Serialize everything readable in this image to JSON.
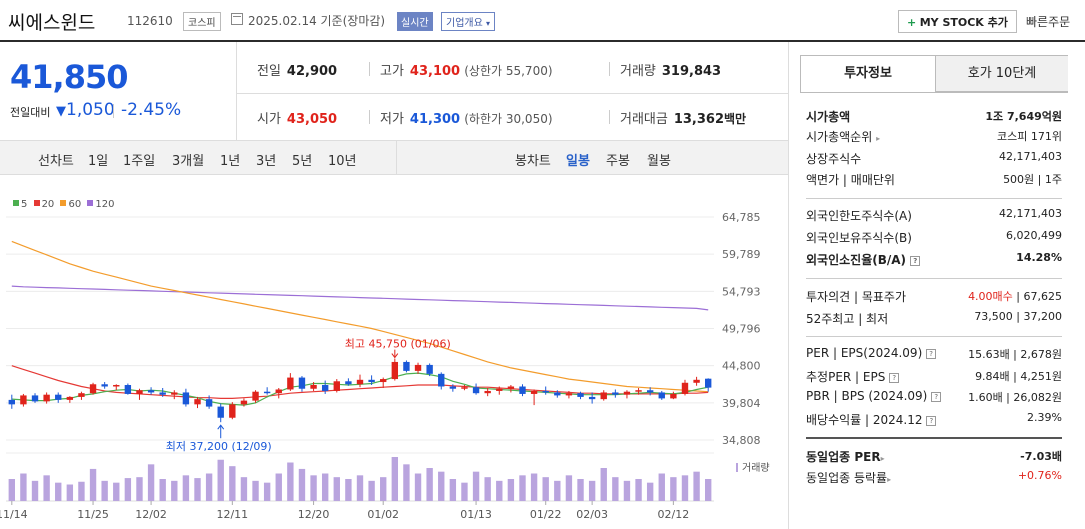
{
  "header": {
    "name": "씨에스윈드",
    "code": "112610",
    "market": "코스피",
    "date_text": "2025.02.14 기준(장마감)",
    "realtime_label": "실시간",
    "company_info_label": "기업개요",
    "mystock_label": "MY STOCK 추가",
    "quick_order_label": "빠른주문"
  },
  "quote": {
    "price": "41,850",
    "change_label": "전일대비",
    "change_value": "1,050",
    "change_pct": "-2.45%",
    "prev_close_label": "전일",
    "prev_close": "42,900",
    "high_label": "고가",
    "high": "43,100",
    "upper_limit": "(상한가 55,700)",
    "volume_label": "거래량",
    "volume": "319,843",
    "open_label": "시가",
    "open": "43,050",
    "low_label": "저가",
    "low": "41,300",
    "lower_limit": "(하한가 30,050)",
    "amount_label": "거래대금",
    "amount": "13,362",
    "amount_unit": "백만"
  },
  "periods": {
    "line_label": "선차트",
    "line_items": [
      "1일",
      "1주일",
      "3개월",
      "1년",
      "3년",
      "5년",
      "10년"
    ],
    "candle_label": "봉차트",
    "candle_items": [
      "일봉",
      "주봉",
      "월봉"
    ],
    "active_candle": "일봉"
  },
  "legend": [
    {
      "label": "5",
      "color": "#4caf50"
    },
    {
      "label": "20",
      "color": "#e53935"
    },
    {
      "label": "60",
      "color": "#f39c2c"
    },
    {
      "label": "120",
      "color": "#9c6fd6"
    }
  ],
  "sidebar": {
    "tab_invest": "투자정보",
    "tab_orderbook": "호가 10단계",
    "rows1": [
      {
        "label": "시가총액",
        "value": "1조 7,649억원",
        "bold": true
      },
      {
        "label": "시가총액순위",
        "value": "코스피 171위"
      },
      {
        "label": "상장주식수",
        "value": "42,171,403"
      },
      {
        "label": "액면가 | 매매단위",
        "value": "500원 | 1주"
      }
    ],
    "rows2": [
      {
        "label": "외국인한도주식수(A)",
        "value": "42,171,403"
      },
      {
        "label": "외국인보유주식수(B)",
        "value": "6,020,499"
      },
      {
        "label": "외국인소진율(B/A)",
        "value": "14.28%",
        "bold": true
      }
    ],
    "rows3": [
      {
        "label": "투자의견 | 목표주가",
        "value_red": "4.00매수",
        "value": " | 67,625"
      },
      {
        "label": "52주최고 | 최저",
        "value": "73,500 | 37,200"
      }
    ],
    "rows4": [
      {
        "label": "PER | EPS(2024.09)",
        "value": "15.63배 | 2,678원"
      },
      {
        "label": "추정PER | EPS",
        "value": "9.84배 | 4,251원"
      },
      {
        "label": "PBR | BPS (2024.09)",
        "value": "1.60배 | 26,082원"
      },
      {
        "label": "배당수익률 | 2024.12",
        "value": "2.39%"
      }
    ],
    "rows5": [
      {
        "label": "동일업종 PER",
        "value": "-7.03배",
        "bold": true
      },
      {
        "label": "동일업종 등락률",
        "value": "+0.76%",
        "red": true
      }
    ]
  },
  "chart_data": {
    "type": "candlestick",
    "y_ticks": [
      64785,
      59789,
      54793,
      49796,
      44800,
      39804,
      34808
    ],
    "ylim": [
      34808,
      64785
    ],
    "x_labels": [
      "11/14",
      "11/25",
      "12/02",
      "12/11",
      "12/20",
      "01/02",
      "01/13",
      "01/22",
      "02/03",
      "02/12"
    ],
    "x_label_index": [
      0,
      7,
      12,
      19,
      26,
      32,
      40,
      46,
      50,
      57
    ],
    "high_annotation": "최고 45,750 (01/06)",
    "low_annotation": "최저 37,200 (12/09)",
    "volume_label": "거래량",
    "candles": [
      [
        40200,
        40900,
        39000,
        39600
      ],
      [
        39600,
        41000,
        39300,
        40800
      ],
      [
        40800,
        41100,
        39800,
        40000
      ],
      [
        40000,
        41200,
        39700,
        40900
      ],
      [
        40900,
        41200,
        39800,
        40200
      ],
      [
        40200,
        40700,
        39800,
        40600
      ],
      [
        40600,
        41300,
        40200,
        41100
      ],
      [
        41100,
        42500,
        40900,
        42300
      ],
      [
        42300,
        42600,
        41700,
        42000
      ],
      [
        42000,
        42300,
        41500,
        42200
      ],
      [
        42200,
        42400,
        40900,
        41000
      ],
      [
        41000,
        41700,
        40200,
        41500
      ],
      [
        41500,
        41900,
        40900,
        41200
      ],
      [
        41200,
        41800,
        40600,
        40900
      ],
      [
        40900,
        41500,
        40300,
        41200
      ],
      [
        41200,
        41700,
        39300,
        39600
      ],
      [
        39600,
        40600,
        39100,
        40300
      ],
      [
        40300,
        40800,
        39000,
        39300
      ],
      [
        39300,
        39700,
        37200,
        37800
      ],
      [
        37800,
        39900,
        37600,
        39600
      ],
      [
        39600,
        40400,
        39300,
        40100
      ],
      [
        40100,
        41500,
        39800,
        41300
      ],
      [
        41300,
        41900,
        40900,
        41100
      ],
      [
        41100,
        41800,
        40400,
        41600
      ],
      [
        41600,
        43800,
        41400,
        43200
      ],
      [
        43200,
        43400,
        41300,
        41700
      ],
      [
        41700,
        42600,
        41400,
        42200
      ],
      [
        42200,
        42800,
        41000,
        41400
      ],
      [
        41400,
        43000,
        41200,
        42700
      ],
      [
        42700,
        43100,
        42100,
        42300
      ],
      [
        42300,
        43600,
        41900,
        42900
      ],
      [
        42900,
        43500,
        42200,
        42600
      ],
      [
        42600,
        43200,
        41800,
        43000
      ],
      [
        43000,
        45750,
        42800,
        45300
      ],
      [
        45300,
        45500,
        43900,
        44100
      ],
      [
        44100,
        45200,
        43700,
        44900
      ],
      [
        44900,
        45100,
        43400,
        43700
      ],
      [
        43700,
        43900,
        41600,
        42000
      ],
      [
        42000,
        42300,
        41300,
        41700
      ],
      [
        41700,
        42200,
        41500,
        41900
      ],
      [
        41900,
        42400,
        40900,
        41100
      ],
      [
        41100,
        41800,
        40700,
        41400
      ],
      [
        41400,
        42000,
        40900,
        41700
      ],
      [
        41700,
        42200,
        41200,
        42000
      ],
      [
        42000,
        42300,
        40700,
        41000
      ],
      [
        41000,
        41600,
        39500,
        41400
      ],
      [
        41400,
        42000,
        40900,
        41200
      ],
      [
        41200,
        41500,
        40500,
        40800
      ],
      [
        40800,
        41400,
        40400,
        41100
      ],
      [
        41100,
        41300,
        40300,
        40600
      ],
      [
        40600,
        41200,
        39700,
        40300
      ],
      [
        40300,
        41500,
        40100,
        41200
      ],
      [
        41200,
        41600,
        40500,
        40900
      ],
      [
        40900,
        41500,
        40400,
        41300
      ],
      [
        41300,
        41800,
        40900,
        41500
      ],
      [
        41500,
        41900,
        40800,
        41200
      ],
      [
        41200,
        41400,
        40200,
        40400
      ],
      [
        40400,
        41300,
        40300,
        41000
      ],
      [
        41000,
        42900,
        40800,
        42500
      ],
      [
        42500,
        43300,
        42100,
        42900
      ],
      [
        43050,
        43100,
        41300,
        41850
      ]
    ],
    "volumes": [
      24,
      30,
      22,
      28,
      20,
      18,
      21,
      35,
      22,
      20,
      25,
      26,
      40,
      24,
      22,
      28,
      25,
      30,
      45,
      38,
      26,
      22,
      20,
      30,
      42,
      35,
      28,
      30,
      26,
      24,
      28,
      22,
      26,
      48,
      40,
      30,
      36,
      32,
      24,
      20,
      32,
      26,
      22,
      24,
      28,
      30,
      26,
      22,
      28,
      24,
      22,
      36,
      26,
      22,
      24,
      20,
      30,
      26,
      28,
      32,
      24
    ],
    "ma5": [
      40300,
      40200,
      40100,
      40100,
      40300,
      40400,
      40800,
      41000,
      41300,
      41500,
      41600,
      41400,
      41500,
      41400,
      41100,
      40800,
      40500,
      40000,
      39700,
      39600,
      39500,
      39800,
      40600,
      41300,
      41900,
      42100,
      42400,
      42400,
      42300,
      42200,
      42300,
      42400,
      42800,
      43300,
      43700,
      43800,
      43600,
      43300,
      42700,
      42300,
      41800,
      41700,
      41600,
      41500,
      41400,
      41300,
      41200,
      41100,
      41000,
      40900,
      40900,
      40900,
      40900,
      41000,
      41100,
      41200,
      41100,
      41000,
      41200,
      41600,
      41900
    ],
    "ma20": [
      44800,
      44300,
      43800,
      43300,
      42800,
      42400,
      42000,
      41700,
      41400,
      41200,
      41100,
      41000,
      40900,
      40800,
      40700,
      40600,
      40500,
      40500,
      40400,
      40400,
      40500,
      40600,
      40700,
      40900,
      41100,
      41200,
      41300,
      41400,
      41500,
      41600,
      41700,
      41800,
      41900,
      42000,
      42100,
      42200,
      42200,
      42200,
      42100,
      42000,
      41900,
      41900,
      41800,
      41700,
      41600,
      41500,
      41400,
      41300,
      41200,
      41100,
      41100,
      41000,
      41000,
      41000,
      41000,
      41000,
      41000,
      41000,
      41100,
      41100,
      41200
    ],
    "ma60": [
      61500,
      60900,
      60300,
      59700,
      59100,
      58500,
      58000,
      57500,
      57100,
      56700,
      56300,
      55900,
      55500,
      55200,
      54900,
      54600,
      54300,
      54000,
      53700,
      53400,
      53100,
      52800,
      52500,
      52200,
      51900,
      51600,
      51300,
      51000,
      50700,
      50400,
      50100,
      49800,
      49400,
      49000,
      48600,
      48200,
      47800,
      47300,
      46800,
      46300,
      45800,
      45300,
      44900,
      44500,
      44200,
      43900,
      43600,
      43300,
      43000,
      42800,
      42600,
      42400,
      42200,
      42000,
      41900,
      41800,
      41700,
      41600,
      41500,
      41400,
      41300
    ],
    "ma120": [
      55500,
      55400,
      55350,
      55300,
      55250,
      55200,
      55150,
      55100,
      55050,
      55000,
      54950,
      54900,
      54850,
      54800,
      54750,
      54700,
      54650,
      54600,
      54550,
      54500,
      54450,
      54400,
      54350,
      54300,
      54250,
      54200,
      54150,
      54100,
      54050,
      54000,
      53950,
      53900,
      53850,
      53800,
      53750,
      53700,
      53650,
      53600,
      53550,
      53500,
      53450,
      53400,
      53350,
      53300,
      53250,
      53200,
      53150,
      53100,
      53050,
      53000,
      52950,
      52900,
      52850,
      52800,
      52750,
      52700,
      52650,
      52600,
      52550,
      52500,
      52300
    ]
  }
}
